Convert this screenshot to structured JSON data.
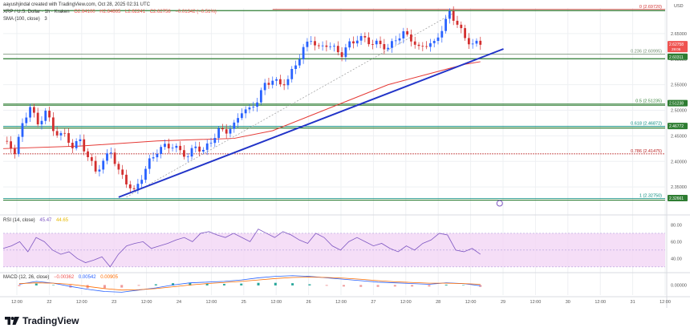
{
  "header": {
    "author": "aayushjindal created with TradingView.com, Oct 28, 2025 02:31 UTC",
    "symbol": "XRP / U.S. Dollar · 1h · Kraken",
    "open": "O2.64100",
    "high": "H2.64665",
    "low": "L2.62241",
    "close": "C2.62758",
    "change": "−0.01342 (−0.51%)",
    "sma": "SMA (100, close)",
    "sma_value": "3",
    "rsi": "RSI (14, close)",
    "rsi_value": "45.47",
    "rsi_ma": "44.65",
    "macd": "MACD (12, 26, close)",
    "macd_values": [
      "−0.00362",
      "0.00542",
      "0.00905"
    ]
  },
  "currency_label": "USD",
  "brand": "TradingView",
  "colors": {
    "up": "#26a69a",
    "down": "#ef5350",
    "candle_up": "#2962ff",
    "candle_down": "#d32f2f",
    "trendline": "#2234c8",
    "sma": "#e53935",
    "fib_0": "#d32f2f",
    "fib_236": "#6d8c6d",
    "fib_50": "#2e7d32",
    "fib_618": "#00897b",
    "fib_786": "#b71c1c",
    "fib_1": "#00897b",
    "rsi_band": "#f3d6f5"
  },
  "chart_data": [
    {
      "type": "candlestick",
      "title": "XRP / U.S. Dollar · 1h · Kraken",
      "x_ticks": [
        "12:00",
        "22",
        "12:00",
        "23",
        "12:00",
        "24",
        "12:00",
        "25",
        "12:00",
        "26",
        "12:00",
        "27",
        "12:00",
        "28",
        "12:00",
        "29",
        "12:00",
        "30",
        "12:00",
        "31",
        "12:00"
      ],
      "y_ticks": [
        2.35,
        2.4,
        2.45,
        2.5,
        2.55,
        2.6,
        2.65
      ],
      "ylim": [
        2.3,
        2.7
      ],
      "close_path": [
        [
          0,
          2.44
        ],
        [
          3,
          2.42
        ],
        [
          5,
          2.47
        ],
        [
          7,
          2.51
        ],
        [
          9,
          2.47
        ],
        [
          11,
          2.5
        ],
        [
          13,
          2.46
        ],
        [
          16,
          2.45
        ],
        [
          18,
          2.43
        ],
        [
          20,
          2.44
        ],
        [
          22,
          2.41
        ],
        [
          24,
          2.38
        ],
        [
          26,
          2.4
        ],
        [
          28,
          2.42
        ],
        [
          30,
          2.38
        ],
        [
          32,
          2.36
        ],
        [
          34,
          2.34
        ],
        [
          36,
          2.37
        ],
        [
          38,
          2.4
        ],
        [
          40,
          2.42
        ],
        [
          42,
          2.43
        ],
        [
          44,
          2.43
        ],
        [
          46,
          2.42
        ],
        [
          48,
          2.41
        ],
        [
          50,
          2.43
        ],
        [
          52,
          2.42
        ],
        [
          54,
          2.44
        ],
        [
          56,
          2.46
        ],
        [
          58,
          2.46
        ],
        [
          60,
          2.47
        ],
        [
          62,
          2.5
        ],
        [
          64,
          2.5
        ],
        [
          66,
          2.52
        ],
        [
          68,
          2.55
        ],
        [
          70,
          2.56
        ],
        [
          72,
          2.55
        ],
        [
          74,
          2.56
        ],
        [
          76,
          2.59
        ],
        [
          78,
          2.62
        ],
        [
          80,
          2.64
        ],
        [
          82,
          2.62
        ],
        [
          84,
          2.63
        ],
        [
          86,
          2.62
        ],
        [
          88,
          2.61
        ],
        [
          90,
          2.63
        ],
        [
          92,
          2.64
        ],
        [
          94,
          2.64
        ],
        [
          96,
          2.63
        ],
        [
          98,
          2.63
        ],
        [
          100,
          2.62
        ],
        [
          102,
          2.64
        ],
        [
          104,
          2.65
        ],
        [
          106,
          2.64
        ],
        [
          108,
          2.62
        ],
        [
          110,
          2.63
        ],
        [
          112,
          2.63
        ],
        [
          114,
          2.66
        ],
        [
          116,
          2.69
        ],
        [
          118,
          2.67
        ],
        [
          120,
          2.64
        ],
        [
          122,
          2.63
        ],
        [
          124,
          2.63
        ]
      ],
      "sma_100": {
        "name": "SMA (100, close)",
        "points": [
          [
            0,
            2.425
          ],
          [
            20,
            2.43
          ],
          [
            40,
            2.44
          ],
          [
            60,
            2.445
          ],
          [
            70,
            2.46
          ],
          [
            80,
            2.49
          ],
          [
            90,
            2.52
          ],
          [
            100,
            2.55
          ],
          [
            110,
            2.57
          ],
          [
            120,
            2.59
          ],
          [
            124,
            2.595
          ]
        ]
      },
      "trendline": {
        "from": [
          30,
          2.33
        ],
        "to": [
          130,
          2.62
        ]
      },
      "fibonacci": [
        {
          "level": "0",
          "label": "0 (2.69720)",
          "value": 2.6972
        },
        {
          "level": "0.236",
          "label": "0.236 (2.60995)",
          "value": 2.60995
        },
        {
          "level": "0.5",
          "label": "0.5 (2.51235)",
          "value": 2.51235
        },
        {
          "level": "0.618",
          "label": "0.618 (2.46872)",
          "value": 2.46872
        },
        {
          "level": "0.786",
          "label": "0.786 (2.41475)",
          "value": 2.41475
        },
        {
          "level": "1",
          "label": "1 (2.32750)",
          "value": 2.3275
        }
      ],
      "horizontal_levels": [
        2.6972,
        2.6031,
        2.5124,
        2.4677,
        2.3266
      ],
      "price_badges": [
        {
          "value": 2.62758,
          "label": "2.62758",
          "sublabel": "29:06"
        },
        {
          "value": 2.6031,
          "label": "2.60311"
        },
        {
          "value": 2.5124,
          "label": "2.51238"
        },
        {
          "value": 2.4677,
          "label": "2.46772"
        },
        {
          "value": 2.3266,
          "label": "2.32661"
        }
      ]
    },
    {
      "type": "line",
      "title": "RSI (14, close)",
      "y_ticks": [
        40,
        60,
        80
      ],
      "ylim": [
        25,
        90
      ],
      "series": [
        {
          "name": "RSI",
          "values": [
            52,
            55,
            60,
            48,
            65,
            60,
            50,
            45,
            48,
            40,
            35,
            38,
            42,
            30,
            45,
            55,
            58,
            60,
            52,
            55,
            58,
            62,
            65,
            60,
            70,
            72,
            68,
            65,
            70,
            65,
            60,
            75,
            70,
            65,
            72,
            68,
            62,
            58,
            70,
            65,
            55,
            50,
            60,
            65,
            60,
            55,
            58,
            52,
            48,
            55,
            50,
            58,
            62,
            70,
            68,
            50,
            48,
            52,
            45
          ]
        }
      ]
    },
    {
      "type": "line",
      "title": "MACD (12, 26, close)",
      "y_ticks": [
        0.0
      ],
      "series": [
        {
          "name": "MACD",
          "values": [
            0.002,
            0.01,
            0.005,
            -0.004,
            -0.012,
            -0.018,
            -0.02,
            -0.014,
            -0.008,
            0.0,
            0.006,
            0.008,
            0.01,
            0.014,
            0.02,
            0.024,
            0.026,
            0.024,
            0.02,
            0.016,
            0.012,
            0.008,
            0.006,
            0.004,
            0.002,
            0.006,
            0.004,
            -0.002
          ]
        },
        {
          "name": "Signal",
          "values": [
            0.004,
            0.006,
            0.005,
            0.002,
            -0.004,
            -0.01,
            -0.014,
            -0.013,
            -0.01,
            -0.005,
            0.0,
            0.004,
            0.007,
            0.01,
            0.014,
            0.018,
            0.021,
            0.022,
            0.021,
            0.019,
            0.016,
            0.012,
            0.009,
            0.007,
            0.005,
            0.005,
            0.004,
            0.002
          ]
        }
      ]
    }
  ]
}
